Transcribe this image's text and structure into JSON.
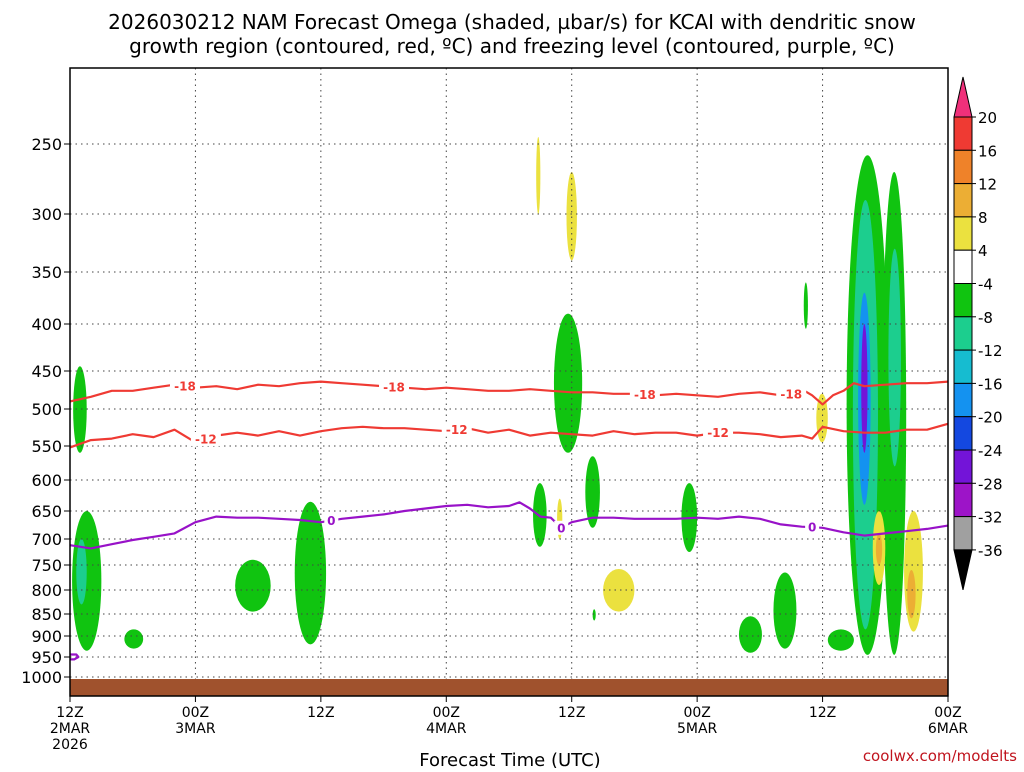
{
  "chart_data": {
    "type": "time-height cross section",
    "title": {
      "line1": "2026030212 NAM Forecast Omega (shaded, µbar/s) for KCAI with dendritic snow",
      "line2": "growth region (contoured, red, ºC) and freezing level (contoured, purple, ºC)"
    },
    "xlabel": "Forecast Time (UTC)",
    "credit": "coolwx.com/modelts",
    "x_range_hours": [
      0,
      84
    ],
    "x_ticks": [
      {
        "hour": 0,
        "line1": "12Z",
        "line2": "2MAR",
        "line3": "2026"
      },
      {
        "hour": 12,
        "line1": "00Z",
        "line2": "3MAR",
        "line3": ""
      },
      {
        "hour": 24,
        "line1": "12Z",
        "line2": "",
        "line3": ""
      },
      {
        "hour": 36,
        "line1": "00Z",
        "line2": "4MAR",
        "line3": ""
      },
      {
        "hour": 48,
        "line1": "12Z",
        "line2": "",
        "line3": ""
      },
      {
        "hour": 60,
        "line1": "00Z",
        "line2": "5MAR",
        "line3": ""
      },
      {
        "hour": 72,
        "line1": "12Z",
        "line2": "",
        "line3": ""
      },
      {
        "hour": 84,
        "line1": "00Z",
        "line2": "6MAR",
        "line3": ""
      }
    ],
    "y_axis": "pressure (hPa)",
    "y_range_hpa": [
      200,
      1025
    ],
    "y_ticks": [
      250,
      300,
      350,
      400,
      450,
      500,
      550,
      600,
      650,
      700,
      750,
      800,
      850,
      900,
      950,
      1000
    ],
    "colorbar": {
      "levels": [
        20,
        16,
        12,
        8,
        4,
        -4,
        -8,
        -12,
        -16,
        -20,
        -24,
        -28,
        -32,
        -36
      ],
      "colors": [
        "#f0307a",
        "#ef3a33",
        "#ef8229",
        "#ecae34",
        "#ebe13f",
        "#ffffff",
        "#10c410",
        "#1cce8e",
        "#16bcd0",
        "#1492f0",
        "#1448e0",
        "#7314d8",
        "#9d14c8",
        "#a0a0a0",
        "#000000"
      ]
    },
    "terrain_color": "#a0522d",
    "terrain_top_hpa": 1005,
    "red_contours": [
      {
        "label": "-18",
        "label_hours": [
          11,
          31,
          55,
          69
        ],
        "points": [
          [
            0,
            490
          ],
          [
            2,
            484
          ],
          [
            4,
            476
          ],
          [
            6,
            476
          ],
          [
            8,
            472
          ],
          [
            10,
            468
          ],
          [
            12,
            472
          ],
          [
            14,
            470
          ],
          [
            16,
            474
          ],
          [
            18,
            468
          ],
          [
            20,
            470
          ],
          [
            22,
            466
          ],
          [
            24,
            464
          ],
          [
            26,
            466
          ],
          [
            28,
            468
          ],
          [
            30,
            470
          ],
          [
            32,
            472
          ],
          [
            34,
            474
          ],
          [
            36,
            472
          ],
          [
            38,
            474
          ],
          [
            40,
            476
          ],
          [
            42,
            476
          ],
          [
            44,
            474
          ],
          [
            46,
            476
          ],
          [
            48,
            478
          ],
          [
            50,
            478
          ],
          [
            52,
            480
          ],
          [
            54,
            480
          ],
          [
            56,
            482
          ],
          [
            58,
            480
          ],
          [
            60,
            482
          ],
          [
            62,
            484
          ],
          [
            64,
            480
          ],
          [
            66,
            478
          ],
          [
            68,
            482
          ],
          [
            69,
            480
          ],
          [
            70,
            474
          ],
          [
            71,
            482
          ],
          [
            72,
            494
          ],
          [
            73,
            482
          ],
          [
            74,
            476
          ],
          [
            75,
            466
          ],
          [
            76,
            470
          ],
          [
            78,
            468
          ],
          [
            80,
            466
          ],
          [
            82,
            466
          ],
          [
            84,
            464
          ]
        ]
      },
      {
        "label": "-12",
        "label_hours": [
          13,
          37,
          62
        ],
        "points": [
          [
            0,
            552
          ],
          [
            2,
            542
          ],
          [
            4,
            540
          ],
          [
            6,
            534
          ],
          [
            8,
            538
          ],
          [
            10,
            528
          ],
          [
            12,
            545
          ],
          [
            14,
            536
          ],
          [
            16,
            532
          ],
          [
            18,
            536
          ],
          [
            20,
            530
          ],
          [
            22,
            536
          ],
          [
            24,
            530
          ],
          [
            26,
            526
          ],
          [
            28,
            524
          ],
          [
            30,
            526
          ],
          [
            32,
            526
          ],
          [
            34,
            528
          ],
          [
            36,
            530
          ],
          [
            38,
            526
          ],
          [
            40,
            532
          ],
          [
            42,
            528
          ],
          [
            44,
            536
          ],
          [
            46,
            532
          ],
          [
            48,
            534
          ],
          [
            50,
            536
          ],
          [
            52,
            530
          ],
          [
            54,
            534
          ],
          [
            56,
            532
          ],
          [
            58,
            532
          ],
          [
            60,
            536
          ],
          [
            62,
            532
          ],
          [
            64,
            532
          ],
          [
            66,
            534
          ],
          [
            68,
            538
          ],
          [
            70,
            536
          ],
          [
            71,
            540
          ],
          [
            72,
            524
          ],
          [
            74,
            530
          ],
          [
            76,
            532
          ],
          [
            78,
            532
          ],
          [
            80,
            528
          ],
          [
            82,
            528
          ],
          [
            84,
            520
          ]
        ]
      }
    ],
    "purple_contours": [
      {
        "label": "0",
        "label_hours": [
          25,
          47,
          71
        ],
        "points": [
          [
            0,
            712
          ],
          [
            2,
            718
          ],
          [
            4,
            710
          ],
          [
            6,
            702
          ],
          [
            8,
            696
          ],
          [
            10,
            690
          ],
          [
            12,
            670
          ],
          [
            14,
            660
          ],
          [
            16,
            662
          ],
          [
            18,
            662
          ],
          [
            20,
            664
          ],
          [
            22,
            666
          ],
          [
            24,
            670
          ],
          [
            26,
            664
          ],
          [
            28,
            660
          ],
          [
            30,
            656
          ],
          [
            32,
            650
          ],
          [
            34,
            646
          ],
          [
            36,
            642
          ],
          [
            38,
            640
          ],
          [
            40,
            644
          ],
          [
            42,
            642
          ],
          [
            43,
            636
          ],
          [
            44,
            646
          ],
          [
            45,
            660
          ],
          [
            46,
            662
          ],
          [
            47,
            680
          ],
          [
            48,
            670
          ],
          [
            50,
            662
          ],
          [
            52,
            662
          ],
          [
            54,
            664
          ],
          [
            56,
            664
          ],
          [
            58,
            664
          ],
          [
            60,
            662
          ],
          [
            62,
            664
          ],
          [
            64,
            660
          ],
          [
            66,
            664
          ],
          [
            68,
            674
          ],
          [
            70,
            678
          ],
          [
            72,
            680
          ],
          [
            74,
            688
          ],
          [
            76,
            694
          ],
          [
            78,
            690
          ],
          [
            80,
            686
          ],
          [
            82,
            682
          ],
          [
            84,
            676
          ]
        ]
      },
      {
        "label": "0",
        "label_hours": [],
        "points": [
          [
            0,
            944
          ],
          [
            0.6,
            944
          ],
          [
            0.8,
            950
          ],
          [
            0.4,
            956
          ],
          [
            0,
            956
          ]
        ]
      }
    ],
    "omega_regions": [
      {
        "value": -6,
        "hours": [
          0.3,
          1.6
        ],
        "hpa": [
          445,
          560
        ]
      },
      {
        "value": -6,
        "hours": [
          0.2,
          3.0
        ],
        "hpa": [
          650,
          935
        ]
      },
      {
        "value": -12,
        "hours": [
          0.6,
          1.6
        ],
        "hpa": [
          700,
          830
        ]
      },
      {
        "value": -6,
        "hours": [
          5.2,
          7.0
        ],
        "hpa": [
          885,
          930
        ]
      },
      {
        "value": -6,
        "hours": [
          15.8,
          19.2
        ],
        "hpa": [
          740,
          845
        ]
      },
      {
        "value": -6,
        "hours": [
          21.5,
          24.5
        ],
        "hpa": [
          635,
          920
        ]
      },
      {
        "value": 6,
        "hours": [
          44.6,
          45.0
        ],
        "hpa": [
          245,
          300
        ]
      },
      {
        "value": 6,
        "hours": [
          47.5,
          48.5
        ],
        "hpa": [
          270,
          340
        ]
      },
      {
        "value": -6,
        "hours": [
          46.3,
          49.0
        ],
        "hpa": [
          390,
          560
        ]
      },
      {
        "value": -6,
        "hours": [
          44.3,
          45.6
        ],
        "hpa": [
          605,
          715
        ]
      },
      {
        "value": 6,
        "hours": [
          46.6,
          47.1
        ],
        "hpa": [
          630,
          700
        ]
      },
      {
        "value": -6,
        "hours": [
          49.3,
          50.7
        ],
        "hpa": [
          565,
          680
        ]
      },
      {
        "value": 6,
        "hours": [
          51.0,
          54.0
        ],
        "hpa": [
          758,
          845
        ]
      },
      {
        "value": -6,
        "hours": [
          50.0,
          50.3
        ],
        "hpa": [
          840,
          865
        ]
      },
      {
        "value": -6,
        "hours": [
          58.5,
          60.0
        ],
        "hpa": [
          605,
          725
        ]
      },
      {
        "value": -6,
        "hours": [
          64.0,
          66.2
        ],
        "hpa": [
          855,
          940
        ]
      },
      {
        "value": -6,
        "hours": [
          67.3,
          69.5
        ],
        "hpa": [
          765,
          930
        ]
      },
      {
        "value": -6,
        "hours": [
          70.2,
          70.6
        ],
        "hpa": [
          360,
          405
        ]
      },
      {
        "value": 6,
        "hours": [
          71.4,
          72.5
        ],
        "hpa": [
          480,
          545
        ]
      },
      {
        "value": -6,
        "hours": [
          72.5,
          75.0
        ],
        "hpa": [
          885,
          935
        ]
      },
      {
        "value": -6,
        "hours": [
          74.3,
          78.3
        ],
        "hpa": [
          258,
          945
        ]
      },
      {
        "value": -12,
        "hours": [
          74.9,
          77.3
        ],
        "hpa": [
          290,
          885
        ]
      },
      {
        "value": -18,
        "hours": [
          75.4,
          76.6
        ],
        "hpa": [
          370,
          640
        ]
      },
      {
        "value": -26,
        "hours": [
          75.7,
          76.3
        ],
        "hpa": [
          400,
          560
        ]
      },
      {
        "value": -6,
        "hours": [
          77.7,
          80.0
        ],
        "hpa": [
          270,
          945
        ]
      },
      {
        "value": -12,
        "hours": [
          78.3,
          79.5
        ],
        "hpa": [
          330,
          580
        ]
      },
      {
        "value": 6,
        "hours": [
          76.8,
          78.0
        ],
        "hpa": [
          650,
          790
        ]
      },
      {
        "value": 10,
        "hours": [
          77.1,
          77.7
        ],
        "hpa": [
          690,
          750
        ]
      },
      {
        "value": 6,
        "hours": [
          79.8,
          81.6
        ],
        "hpa": [
          650,
          890
        ]
      },
      {
        "value": 10,
        "hours": [
          80.1,
          80.9
        ],
        "hpa": [
          760,
          860
        ]
      }
    ]
  }
}
